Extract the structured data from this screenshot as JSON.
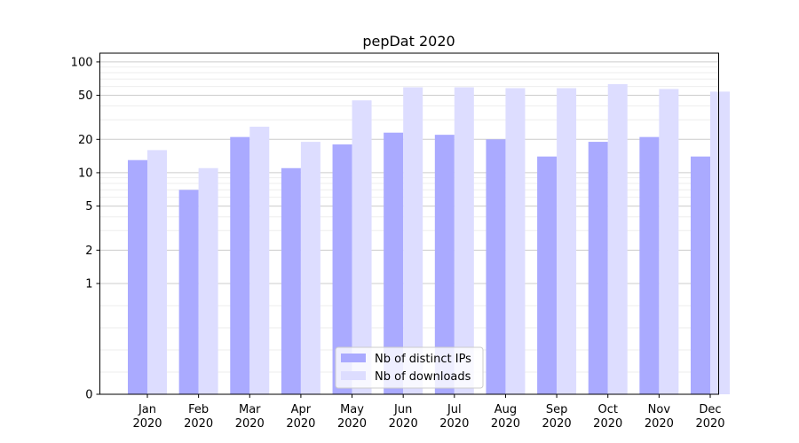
{
  "chart_data": {
    "type": "bar",
    "title": "pepDat 2020",
    "xlabel": "",
    "ylabel": "",
    "yscale": "symlog",
    "ylim": [
      0,
      120
    ],
    "yticks": [
      0,
      1,
      2,
      5,
      10,
      20,
      50,
      100
    ],
    "grid": true,
    "legend_position": "bottom-center",
    "categories": [
      [
        "Jan",
        "2020"
      ],
      [
        "Feb",
        "2020"
      ],
      [
        "Mar",
        "2020"
      ],
      [
        "Apr",
        "2020"
      ],
      [
        "May",
        "2020"
      ],
      [
        "Jun",
        "2020"
      ],
      [
        "Jul",
        "2020"
      ],
      [
        "Aug",
        "2020"
      ],
      [
        "Sep",
        "2020"
      ],
      [
        "Oct",
        "2020"
      ],
      [
        "Nov",
        "2020"
      ],
      [
        "Dec",
        "2020"
      ]
    ],
    "series": [
      {
        "name": "Nb of distinct IPs",
        "color": "#aaaaff",
        "values": [
          13,
          7,
          21,
          11,
          18,
          23,
          22,
          20,
          14,
          19,
          21,
          14
        ]
      },
      {
        "name": "Nb of downloads",
        "color": "#ddddff",
        "values": [
          16,
          11,
          26,
          19,
          45,
          59,
          59,
          58,
          58,
          63,
          57,
          54
        ]
      }
    ]
  }
}
